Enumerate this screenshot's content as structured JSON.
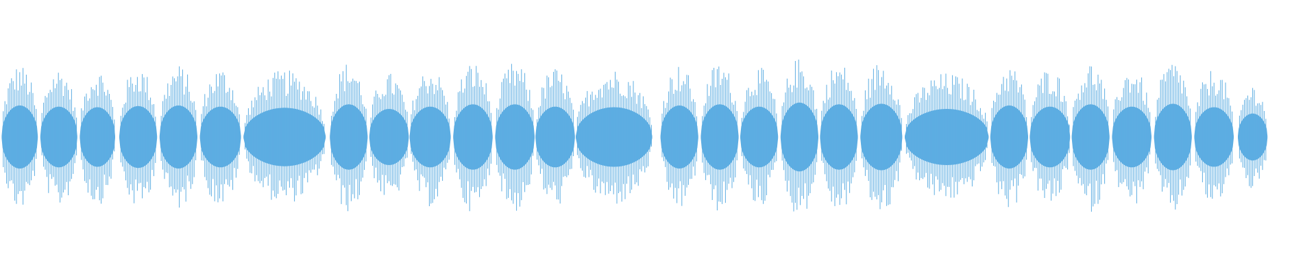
{
  "waveform": {
    "color": "#5dade2",
    "xlim": [
      0,
      32
    ],
    "ylim": [
      -1,
      1
    ],
    "bursts": [
      {
        "start": 0.04,
        "end": 0.92,
        "peak": 0.53
      },
      {
        "start": 0.98,
        "end": 1.88,
        "peak": 0.51
      },
      {
        "start": 1.94,
        "end": 2.8,
        "peak": 0.5
      },
      {
        "start": 2.9,
        "end": 3.82,
        "peak": 0.52
      },
      {
        "start": 3.88,
        "end": 4.8,
        "peak": 0.53
      },
      {
        "start": 4.86,
        "end": 5.86,
        "peak": 0.51
      },
      {
        "start": 5.92,
        "end": 7.92,
        "peak": 0.49
      },
      {
        "start": 8.02,
        "end": 8.94,
        "peak": 0.55
      },
      {
        "start": 8.98,
        "end": 9.94,
        "peak": 0.47
      },
      {
        "start": 9.96,
        "end": 10.96,
        "peak": 0.51
      },
      {
        "start": 11.02,
        "end": 11.98,
        "peak": 0.55
      },
      {
        "start": 12.04,
        "end": 13.0,
        "peak": 0.55
      },
      {
        "start": 13.02,
        "end": 13.98,
        "peak": 0.51
      },
      {
        "start": 14.0,
        "end": 15.86,
        "peak": 0.5
      },
      {
        "start": 16.06,
        "end": 16.98,
        "peak": 0.53
      },
      {
        "start": 17.04,
        "end": 17.96,
        "peak": 0.55
      },
      {
        "start": 18.0,
        "end": 18.92,
        "peak": 0.51
      },
      {
        "start": 18.98,
        "end": 19.9,
        "peak": 0.58
      },
      {
        "start": 19.94,
        "end": 20.86,
        "peak": 0.55
      },
      {
        "start": 20.92,
        "end": 21.94,
        "peak": 0.56
      },
      {
        "start": 22.0,
        "end": 24.04,
        "peak": 0.47
      },
      {
        "start": 24.08,
        "end": 25.0,
        "peak": 0.53
      },
      {
        "start": 25.04,
        "end": 26.02,
        "peak": 0.51
      },
      {
        "start": 26.06,
        "end": 26.98,
        "peak": 0.55
      },
      {
        "start": 27.04,
        "end": 28.0,
        "peak": 0.51
      },
      {
        "start": 28.06,
        "end": 28.98,
        "peak": 0.56
      },
      {
        "start": 29.04,
        "end": 30.0,
        "peak": 0.5
      },
      {
        "start": 30.1,
        "end": 30.82,
        "peak": 0.39
      }
    ]
  }
}
